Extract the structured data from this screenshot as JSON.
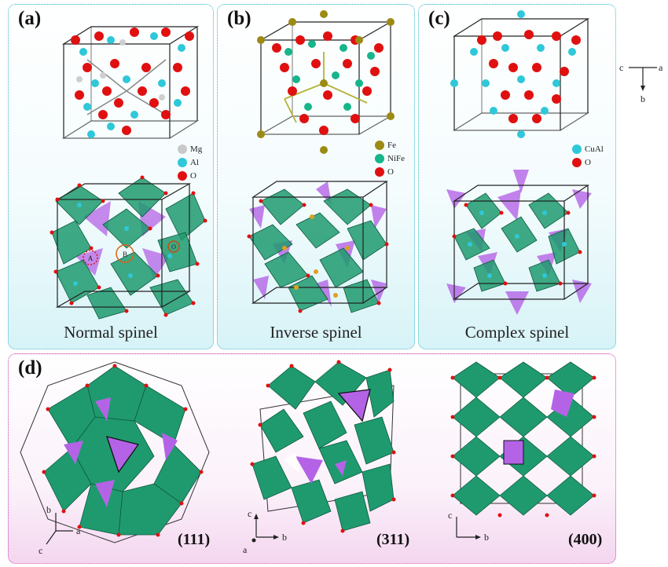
{
  "panels": [
    {
      "label": "(a)",
      "caption": "Normal spinel",
      "legend": [
        {
          "name": "Mg",
          "color": "#c9c9c9"
        },
        {
          "name": "Al",
          "color": "#2ec8d8"
        },
        {
          "name": "O",
          "color": "#e01010"
        }
      ],
      "site_labels": [
        "A",
        "B",
        "O"
      ]
    },
    {
      "label": "(b)",
      "caption": "Inverse spinel",
      "legend": [
        {
          "name": "Fe",
          "color": "#9b8a14"
        },
        {
          "name": "NiFe",
          "color": "#16b58a"
        },
        {
          "name": "O",
          "color": "#e01010"
        }
      ]
    },
    {
      "label": "(c)",
      "caption": "Complex spinel",
      "legend": [
        {
          "name": "CuAl",
          "color": "#2ec8d8"
        },
        {
          "name": "O",
          "color": "#e01010"
        }
      ]
    }
  ],
  "axes_top": {
    "c": "c",
    "a": "a",
    "b": "b"
  },
  "panel_d": {
    "label": "(d)",
    "views": [
      {
        "miller": "(111)",
        "axes": {
          "b": "b",
          "a": "a",
          "c": "c"
        }
      },
      {
        "miller": "(311)",
        "axes": {
          "c": "c",
          "b": "b",
          "a": "a"
        }
      },
      {
        "miller": "(400)",
        "axes": {
          "c": "c",
          "b": "b"
        }
      }
    ]
  },
  "colors": {
    "octahedra": "#1f9a6e",
    "tetrahedra": "#b463e6",
    "oxygen": "#e01010",
    "cation": "#2ec8d8",
    "panel_top_border": "#38b7cf",
    "panel_d_border": "#d23fb5"
  }
}
